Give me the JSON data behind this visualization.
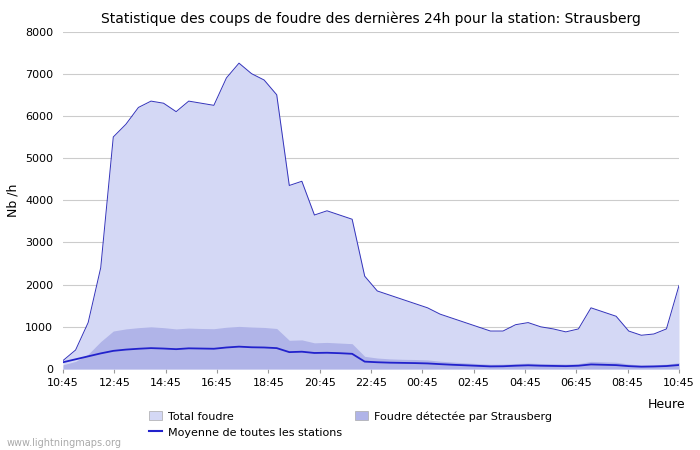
{
  "title": "Statistique des coups de foudre des dernières 24h pour la station: Strausberg",
  "ylabel": "Nb /h",
  "xlabel_right": "Heure",
  "watermark": "www.lightningmaps.org",
  "ylim": [
    0,
    8000
  ],
  "yticks": [
    0,
    1000,
    2000,
    3000,
    4000,
    5000,
    6000,
    7000,
    8000
  ],
  "xtick_labels": [
    "10:45",
    "12:45",
    "14:45",
    "16:45",
    "18:45",
    "20:45",
    "22:45",
    "00:45",
    "02:45",
    "04:45",
    "06:45",
    "08:45",
    "10:45"
  ],
  "bg_color": "#ffffff",
  "grid_color": "#cccccc",
  "total_foudre_color": "#d4d8f5",
  "strausberg_color": "#b0b4e8",
  "strausberg_edge_color": "#3333bb",
  "moyenne_color": "#2222cc",
  "legend_total_color": "#d4d8f5",
  "legend_strausberg_color": "#b0b4e8",
  "total_foudre": [
    200,
    450,
    1100,
    2400,
    5500,
    5800,
    6200,
    6350,
    6300,
    6100,
    6350,
    6300,
    6250,
    6900,
    7250,
    7000,
    6850,
    6500,
    4350,
    4450,
    3650,
    3750,
    3650,
    3550,
    2200,
    1850,
    1750,
    1650,
    1550,
    1450,
    1300,
    1200,
    1100,
    1000,
    900,
    900,
    1050,
    1100,
    1000,
    950,
    880,
    950,
    1450,
    1350,
    1250,
    900,
    800,
    830,
    950,
    1980
  ],
  "strausberg": [
    100,
    180,
    350,
    650,
    900,
    950,
    980,
    1000,
    980,
    950,
    970,
    960,
    955,
    990,
    1010,
    995,
    985,
    960,
    680,
    690,
    620,
    630,
    615,
    600,
    300,
    260,
    240,
    230,
    225,
    215,
    185,
    165,
    145,
    128,
    112,
    115,
    130,
    140,
    130,
    125,
    118,
    128,
    180,
    170,
    160,
    118,
    95,
    100,
    115,
    150
  ],
  "moyenne": [
    160,
    230,
    300,
    370,
    430,
    460,
    480,
    495,
    485,
    470,
    490,
    485,
    480,
    510,
    530,
    515,
    510,
    495,
    400,
    410,
    380,
    385,
    375,
    360,
    175,
    160,
    150,
    145,
    140,
    132,
    115,
    100,
    88,
    75,
    62,
    65,
    78,
    88,
    78,
    73,
    68,
    78,
    108,
    100,
    92,
    68,
    55,
    60,
    70,
    95
  ]
}
